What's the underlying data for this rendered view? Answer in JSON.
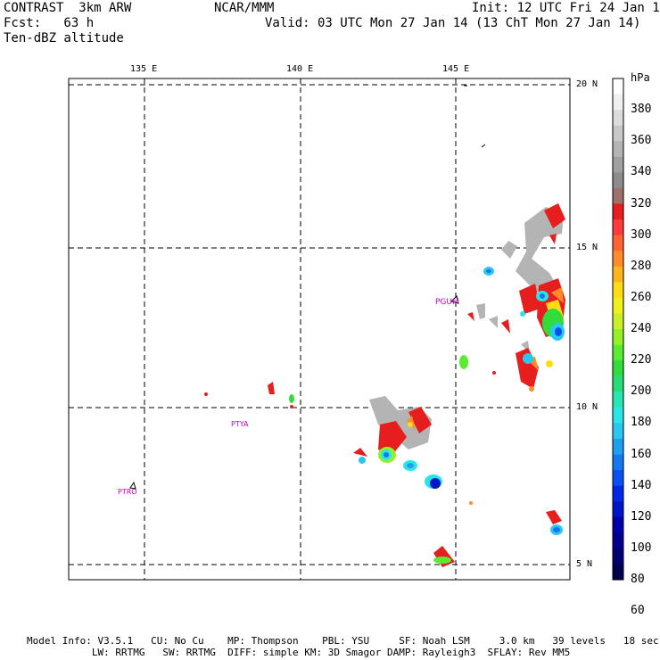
{
  "header": {
    "line1_left": "CONTRAST  3km ARW",
    "line1_mid": "NCAR/MMM",
    "line1_right": "Init: 12 UTC Fri 24 Jan 14",
    "line2_left": "Fcst:   63 h",
    "line2_right": "Valid: 03 UTC Mon 27 Jan 14 (13 ChT Mon 27 Jan 14)",
    "line3_left": "Ten-dBZ altitude"
  },
  "map": {
    "lon_labels": [
      "135 E",
      "140 E",
      "145 E"
    ],
    "lat_labels": [
      "20 N",
      "15 N",
      "10 N",
      "5 N"
    ],
    "stations": [
      "PGUM",
      "PTYA",
      "PTRO"
    ]
  },
  "colorbar": {
    "unit": "hPa",
    "labels": [
      "380",
      "360",
      "340",
      "320",
      "300",
      "280",
      "260",
      "240",
      "220",
      "200",
      "180",
      "160",
      "140",
      "120",
      "100",
      "80",
      "60"
    ],
    "colors": [
      "#ffffff",
      "#f0f0f0",
      "#dcdcdc",
      "#c8c8c8",
      "#b4b4b4",
      "#a0a0a0",
      "#8c8c8c",
      "#a0706a",
      "#e61e1e",
      "#ff3c3c",
      "#ff6432",
      "#ff8c28",
      "#ffb41e",
      "#ffdc14",
      "#f0f01e",
      "#c8f028",
      "#96f028",
      "#5aeb32",
      "#32dc3c",
      "#28dc78",
      "#28e6b4",
      "#28e6e6",
      "#28c8f0",
      "#1ea0f0",
      "#1478f0",
      "#0a50f0",
      "#0028e6",
      "#0014c8",
      "#0000aa",
      "#00008c",
      "#000070",
      "#000050"
    ]
  },
  "footer": {
    "line1": "Model Info: V3.5.1   CU: No Cu    MP: Thompson    PBL: YSU     SF: Noah LSM     3.0 km   39 levels   18 sec",
    "line2": "           LW: RRTMG   SW: RRTMG  DIFF: simple KM: 3D Smagor DAMP: Rayleigh3  SFLAY: Rev MM5"
  }
}
